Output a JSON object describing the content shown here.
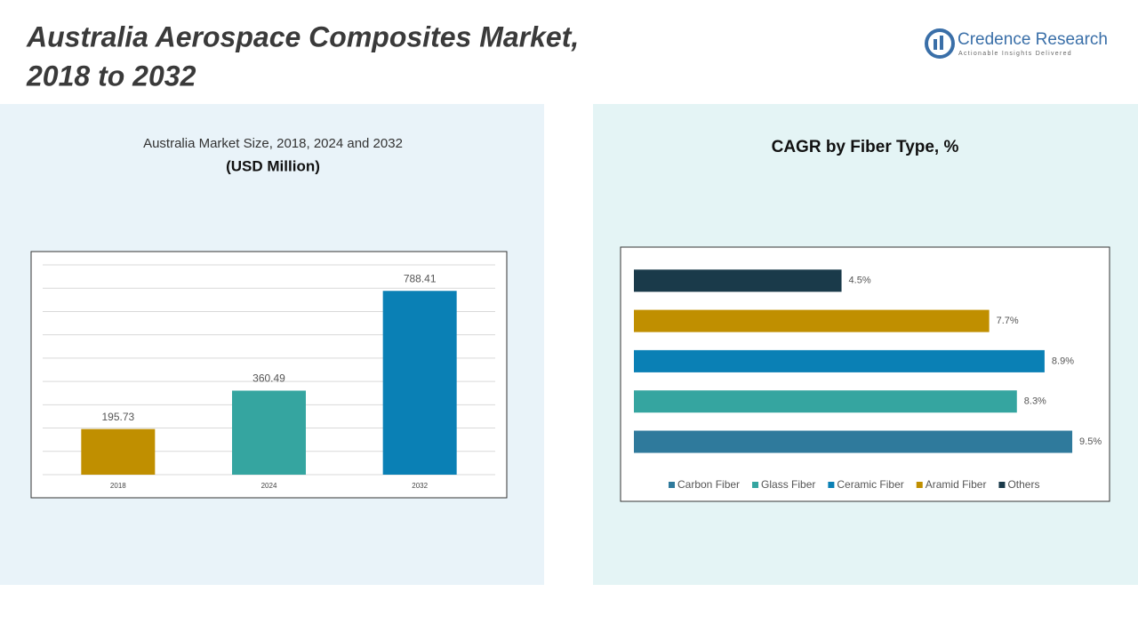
{
  "header": {
    "title_lines": [
      "Australia Aerospace Composites Market,",
      "2018 to 2032"
    ],
    "logo": {
      "name": "Credence Research",
      "tagline": "Actionable Insights Delivered"
    }
  },
  "chart_data": [
    {
      "type": "bar",
      "title": "Australia Market Size, 2018, 2024 and 2032",
      "subtitle": "(USD Million)",
      "categories": [
        "2018",
        "2024",
        "2032"
      ],
      "values": [
        195.73,
        360.49,
        788.41
      ],
      "colors": [
        "#c08f00",
        "#35a5a0",
        "#0a80b5"
      ],
      "ylim": [
        0,
        900
      ],
      "yticks": [
        0,
        100,
        200,
        300,
        400,
        500,
        600,
        700,
        800,
        900
      ],
      "grid": true
    },
    {
      "type": "barh",
      "title": "CAGR by Fiber Type, %",
      "categories": [
        "Carbon Fiber",
        "Glass Fiber",
        "Ceramic Fiber",
        "Aramid Fiber",
        "Others"
      ],
      "values": [
        9.5,
        8.3,
        8.9,
        7.7,
        4.5
      ],
      "value_labels": [
        "9.5%",
        "8.3%",
        "8.9%",
        "7.7%",
        "4.5%"
      ],
      "colors": [
        "#2f7a9c",
        "#35a5a0",
        "#0a80b5",
        "#c08f00",
        "#1a3a4a"
      ],
      "xlim": [
        0,
        10
      ],
      "legend": "bottom"
    }
  ]
}
